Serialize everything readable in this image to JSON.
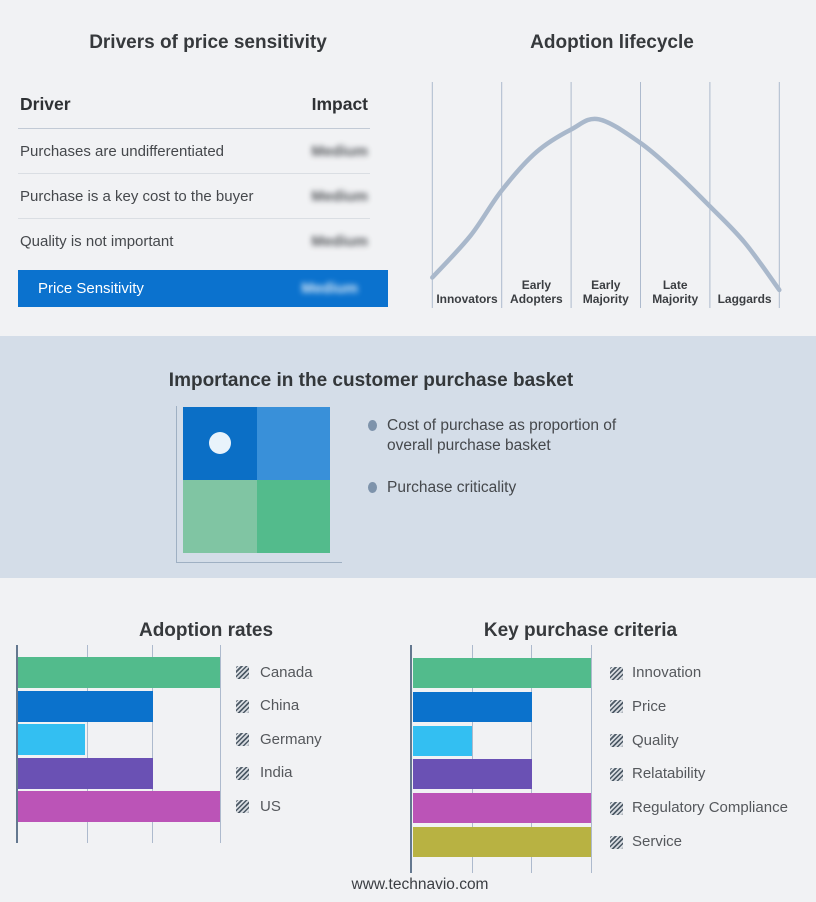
{
  "page": {
    "footer_url": "www.technavio.com"
  },
  "colors": {
    "background": "#f1f2f4",
    "band_background": "#d4dde8",
    "accent_blue": "#0b72ce",
    "grid_line": "#adbacd",
    "axis_line": "#64788f",
    "curve_line": "#a9b8cb",
    "hatch_stroke": "#4d5a66",
    "hatch_bg": "#d9dde2",
    "quadrant_top_left": "#0b6fc6",
    "quadrant_top_right": "#3990d9",
    "quadrant_bottom_left": "#80c5a3",
    "quadrant_bottom_right": "#53bb8c",
    "quadrant_dot": "#e9f3fb",
    "bullet_dot": "#7e93ab"
  },
  "drivers_panel": {
    "title": "Drivers of price sensitivity",
    "header": {
      "driver": "Driver",
      "impact": "Impact"
    },
    "rows": [
      {
        "driver": "Purchases are undifferentiated",
        "impact": "Medium"
      },
      {
        "driver": "Purchase is a key cost to the buyer",
        "impact": "Medium"
      },
      {
        "driver": "Quality is not important",
        "impact": "Medium"
      }
    ],
    "summary": {
      "label": "Price Sensitivity",
      "impact": "Medium"
    },
    "impact_values_blurred": true
  },
  "basket_panel": {
    "title": "Importance in the customer purchase basket",
    "bullets": [
      "Cost of purchase as proportion of overall purchase basket",
      "Purchase criticality"
    ]
  },
  "chart_data": [
    {
      "id": "adoption-lifecycle",
      "type": "line",
      "title": "Adoption lifecycle",
      "categories": [
        "Innovators",
        "Early Adopters",
        "Early Majority",
        "Late Majority",
        "Laggards"
      ],
      "curve_shape": "bell curve, peak near Early Majority",
      "points_pct": [
        [
          0,
          13.5
        ],
        [
          11,
          32
        ],
        [
          20,
          52
        ],
        [
          30,
          69
        ],
        [
          40,
          79
        ],
        [
          48,
          83.5
        ],
        [
          60,
          73
        ],
        [
          70,
          60
        ],
        [
          80,
          45
        ],
        [
          90,
          29
        ],
        [
          100,
          8
        ]
      ],
      "grid": "vertical category boundary lines, no y axis"
    },
    {
      "id": "adoption-rates",
      "type": "bar",
      "orientation": "horizontal",
      "title": "Adoption rates",
      "categories": [
        "Canada",
        "China",
        "Germany",
        "India",
        "US"
      ],
      "values": [
        3,
        2,
        1,
        2,
        3
      ],
      "xlim": [
        0,
        3
      ],
      "bar_colors": [
        "#52bb8c",
        "#0b72cc",
        "#33bff2",
        "#6a51b4",
        "#bb54b7"
      ],
      "legend_position": "right"
    },
    {
      "id": "key-purchase-criteria",
      "type": "bar",
      "orientation": "horizontal",
      "title": "Key purchase criteria",
      "categories": [
        "Innovation",
        "Price",
        "Quality",
        "Relatability",
        "Regulatory Compliance",
        "Service"
      ],
      "values": [
        3,
        2,
        1,
        2,
        3,
        3
      ],
      "xlim": [
        0,
        3
      ],
      "bar_colors": [
        "#52bb8c",
        "#0b72cc",
        "#33bff2",
        "#6a51b4",
        "#bb54b7",
        "#b8b242"
      ],
      "legend_position": "right"
    }
  ]
}
